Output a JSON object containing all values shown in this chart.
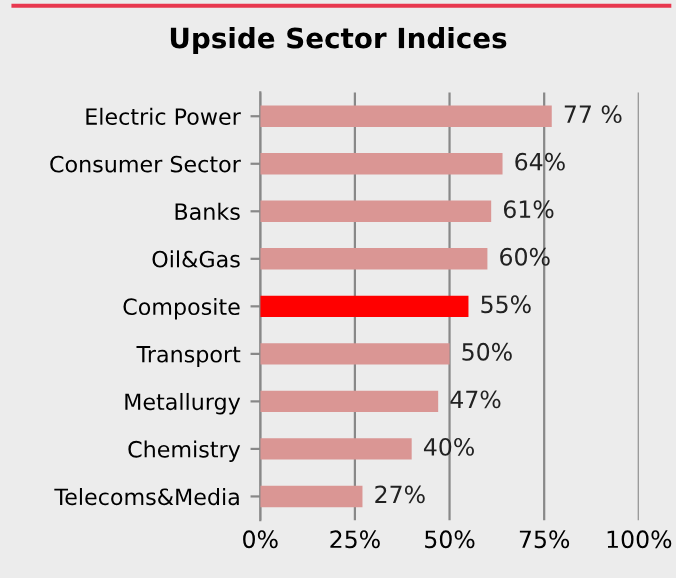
{
  "chart_data": {
    "type": "bar",
    "orientation": "horizontal",
    "title": "Upside Sector Indices",
    "categories": [
      "Electric Power",
      "Consumer Sector",
      "Banks",
      "Oil&Gas",
      "Composite",
      "Transport",
      "Metallurgy",
      "Chemistry",
      "Telecoms&Media"
    ],
    "values": [
      77,
      64,
      61,
      60,
      55,
      50,
      47,
      40,
      27
    ],
    "colors": [
      "#da9694",
      "#da9694",
      "#da9694",
      "#da9694",
      "#ff0000",
      "#da9694",
      "#da9694",
      "#da9694",
      "#da9694"
    ],
    "value_labels": [
      "77 %",
      "64%",
      "61%",
      "60%",
      "55%",
      "50%",
      "47%",
      "40%",
      "27%"
    ],
    "xlim": [
      0,
      100
    ],
    "xticks": [
      {
        "value": 0,
        "label": "0%"
      },
      {
        "value": 25,
        "label": "25%"
      },
      {
        "value": 50,
        "label": "50%"
      },
      {
        "value": 75,
        "label": "75%"
      },
      {
        "value": 100,
        "label": "100%"
      }
    ],
    "grid": "x",
    "legend": false
  }
}
